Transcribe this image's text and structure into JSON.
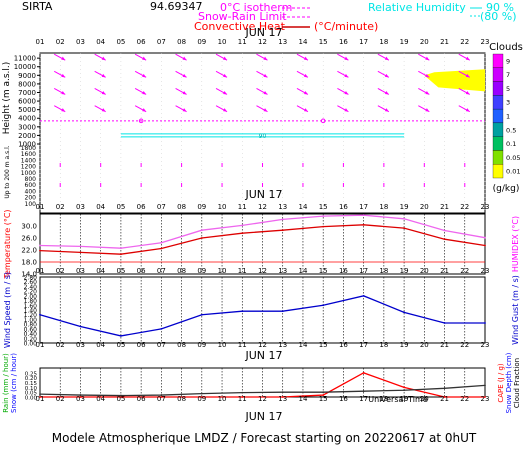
{
  "header": {
    "station": "SIRTA",
    "altitude_text": "94.69347",
    "legend_left": [
      {
        "label": "0°C isotherm",
        "color": "#ff00ff"
      },
      {
        "label": "Snow-Rain Limit",
        "color": "#ff00ff"
      },
      {
        "label": "Convective Heat",
        "color": "#ff0000",
        "unit": "(°C/minute)"
      }
    ],
    "legend_right": [
      {
        "label": "Relative Humidity",
        "value": "90 %",
        "color": "#00e5e5"
      },
      {
        "label": "",
        "value": "(80 %)",
        "color": "#00e5e5"
      }
    ]
  },
  "date_label": "JUN 17",
  "hours": [
    "01",
    "02",
    "03",
    "04",
    "05",
    "06",
    "07",
    "08",
    "09",
    "10",
    "11",
    "12",
    "13",
    "14",
    "15",
    "16",
    "17",
    "18",
    "19",
    "20",
    "21",
    "22",
    "23"
  ],
  "footer": {
    "universal_time": "Universal Time",
    "caption": "Modele Atmospherique LMDZ / Forecast starting on 20220617 at 0hUT"
  },
  "clouds_scale": {
    "title": "Clouds",
    "unit": "(g/kg)",
    "labels": [
      "9",
      "7",
      "5",
      "3",
      "1",
      "0.5",
      "0.1",
      "0.05",
      "0.01"
    ],
    "colors": [
      "#ff00ff",
      "#cc00ff",
      "#9900ff",
      "#4040ff",
      "#2060ff",
      "#00a0a0",
      "#00c060",
      "#80e000",
      "#ffff00"
    ]
  },
  "chart_data": [
    {
      "type": "wind-profile",
      "panel": "height",
      "ylabel": "Height  (m a.s.l.)",
      "ylabel_low": "Up to 200 m a.s.l.",
      "yticks_upper": [
        "11000",
        "10000",
        "9000",
        "8000",
        "7000",
        "6000",
        "5000",
        "4000",
        "3000",
        "2000",
        "1000"
      ],
      "yticks_lower": [
        "1800",
        "1600",
        "1400",
        "1200",
        "1000",
        "800",
        "600",
        "400",
        "200",
        "100"
      ],
      "isotherm_0c_m": 3700,
      "relative_humidity_layer": {
        "x_hours": [
          5,
          19
        ],
        "height_m": 2000,
        "label": "90"
      },
      "cloud_patch": {
        "x_hours": [
          20,
          23
        ],
        "height_m": [
          8300,
          9700
        ],
        "color": "#ffff00"
      }
    },
    {
      "type": "line",
      "panel": "temperature",
      "ylabel": "Temperature (°C)",
      "ylabel_right": "HUMIDEX (°C)",
      "yticks": [
        "14.0",
        "18.0",
        "22.0",
        "26.0",
        "30.0"
      ],
      "ylim": [
        14,
        34
      ],
      "x": [
        1,
        3,
        5,
        7,
        9,
        11,
        13,
        15,
        17,
        19,
        21,
        23
      ],
      "series": [
        {
          "name": "Temperature",
          "color": "#dd0000",
          "values": [
            21.8,
            21.2,
            20.6,
            22.5,
            26.0,
            27.6,
            28.6,
            29.8,
            30.4,
            29.3,
            25.6,
            23.5
          ]
        },
        {
          "name": "HUMIDEX",
          "color": "#ee66ee",
          "values": [
            23.5,
            23.2,
            22.6,
            24.4,
            28.6,
            30.2,
            32.2,
            33.3,
            33.6,
            32.4,
            28.5,
            26.1
          ]
        }
      ]
    },
    {
      "type": "line",
      "panel": "wind",
      "ylabel": "Wind Speed (m / s)",
      "ylabel_right": "Wind Gust (m / s)",
      "yticks": [
        "0.00",
        "0.20",
        "0.40",
        "0.60",
        "0.80",
        "1.00",
        "1.20",
        "1.40",
        "1.60",
        "1.80",
        "2.00",
        "2.20",
        "2.40",
        "2.60",
        "2.80"
      ],
      "ylim": [
        0,
        2.8
      ],
      "x": [
        1,
        3,
        5,
        7,
        9,
        11,
        13,
        15,
        17,
        19,
        21,
        23
      ],
      "series": [
        {
          "name": "Wind Speed",
          "color": "#0000cc",
          "values": [
            1.2,
            0.7,
            0.3,
            0.6,
            1.2,
            1.35,
            1.35,
            1.6,
            2.0,
            1.3,
            0.85,
            0.85
          ]
        }
      ]
    },
    {
      "type": "line",
      "panel": "precipitation",
      "ylabel_left": [
        "Rain (mm / hour)",
        "Snow (cm / hour)"
      ],
      "ylabel_right": [
        "CAPE (J / g)",
        "Snow Depth (cm)",
        "Cloud Fraction"
      ],
      "yticks": [
        "0.00",
        "0.05",
        "0.10",
        "0.15",
        "0.20",
        "0.25"
      ],
      "ylim": [
        0,
        0.3
      ],
      "x": [
        1,
        3,
        5,
        7,
        9,
        11,
        13,
        15,
        17,
        19,
        21,
        23
      ],
      "series": [
        {
          "name": "CAPE",
          "color": "#ff0000",
          "values": [
            0,
            0,
            0,
            0,
            0,
            0,
            0,
            0.02,
            0.25,
            0.1,
            0,
            0
          ]
        },
        {
          "name": "Cloud Fraction",
          "color": "#333333",
          "values": [
            0.03,
            0.02,
            0.015,
            0.02,
            0.035,
            0.045,
            0.05,
            0.05,
            0.06,
            0.07,
            0.09,
            0.12
          ]
        }
      ]
    }
  ]
}
